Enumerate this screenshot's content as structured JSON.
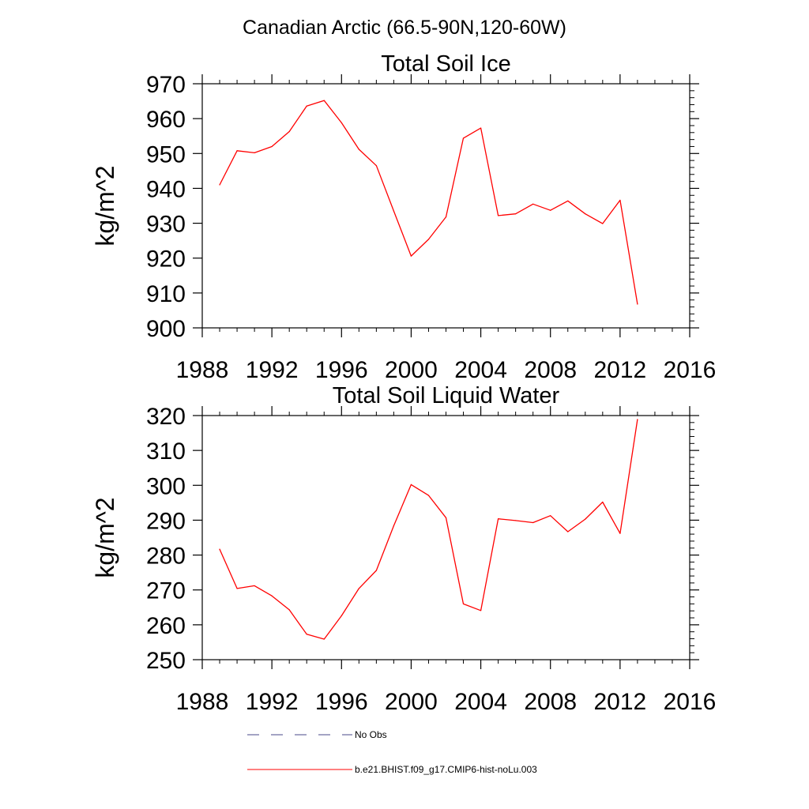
{
  "suptitle": "Canadian Arctic (66.5-90N,120-60W)",
  "colors": {
    "model": "#ff0000",
    "obs": "#4a4a8a",
    "axis": "#000000"
  },
  "chart_data": [
    {
      "type": "line",
      "title": "Total Soil Ice",
      "ylabel": "kg/m^2",
      "xlabel": "",
      "xlim": [
        1988,
        2016
      ],
      "ylim": [
        900,
        970
      ],
      "xticks": [
        1988,
        1992,
        1996,
        2000,
        2004,
        2008,
        2012,
        2016
      ],
      "xtick_labels": [
        "1988",
        "1992",
        "1996",
        "2000",
        "2004",
        "2008",
        "2012",
        "2016"
      ],
      "yticks": [
        900,
        910,
        920,
        930,
        940,
        950,
        960,
        970
      ],
      "ytick_labels": [
        "900",
        "910",
        "920",
        "930",
        "940",
        "950",
        "960",
        "970"
      ],
      "grid": false,
      "series": [
        {
          "name": "b.e21.BHIST.f09_g17.CMIP6-hist-noLu.003",
          "color": "#ff0000",
          "x": [
            1989,
            1990,
            1991,
            1992,
            1993,
            1994,
            1995,
            1996,
            1997,
            1998,
            1999,
            2000,
            2001,
            2002,
            2003,
            2004,
            2005,
            2006,
            2007,
            2008,
            2009,
            2010,
            2011,
            2012,
            2013
          ],
          "y": [
            941.0,
            950.8,
            950.2,
            952.0,
            956.3,
            963.6,
            965.2,
            958.8,
            951.2,
            946.5,
            933.5,
            920.6,
            925.4,
            931.8,
            954.4,
            957.3,
            932.2,
            932.7,
            935.5,
            933.7,
            936.4,
            932.7,
            929.9,
            936.6,
            906.8
          ]
        }
      ]
    },
    {
      "type": "line",
      "title": "Total Soil Liquid Water",
      "ylabel": "kg/m^2",
      "xlabel": "",
      "xlim": [
        1988,
        2016
      ],
      "ylim": [
        250,
        320
      ],
      "xticks": [
        1988,
        1992,
        1996,
        2000,
        2004,
        2008,
        2012,
        2016
      ],
      "xtick_labels": [
        "1988",
        "1992",
        "1996",
        "2000",
        "2004",
        "2008",
        "2012",
        "2016"
      ],
      "yticks": [
        250,
        260,
        270,
        280,
        290,
        300,
        310,
        320
      ],
      "ytick_labels": [
        "250",
        "260",
        "270",
        "280",
        "290",
        "300",
        "310",
        "320"
      ],
      "grid": false,
      "series": [
        {
          "name": "b.e21.BHIST.f09_g17.CMIP6-hist-noLu.003",
          "color": "#ff0000",
          "x": [
            1989,
            1990,
            1991,
            1992,
            1993,
            1994,
            1995,
            1996,
            1997,
            1998,
            1999,
            2000,
            2001,
            2002,
            2003,
            2004,
            2005,
            2006,
            2007,
            2008,
            2009,
            2010,
            2011,
            2012,
            2013
          ],
          "y": [
            281.7,
            270.4,
            271.2,
            268.3,
            264.3,
            257.3,
            255.9,
            262.6,
            270.4,
            275.6,
            288.4,
            300.2,
            297.1,
            290.7,
            266.0,
            264.1,
            290.4,
            289.9,
            289.3,
            291.3,
            286.7,
            290.3,
            295.2,
            286.2,
            318.9
          ]
        }
      ]
    }
  ],
  "legend": {
    "placement": "bottom",
    "entries": [
      {
        "label": "No Obs",
        "style": "dashed",
        "color": "#4a4a8a"
      },
      {
        "label": "b.e21.BHIST.f09_g17.CMIP6-hist-noLu.003",
        "style": "solid",
        "color": "#ff0000"
      }
    ]
  }
}
